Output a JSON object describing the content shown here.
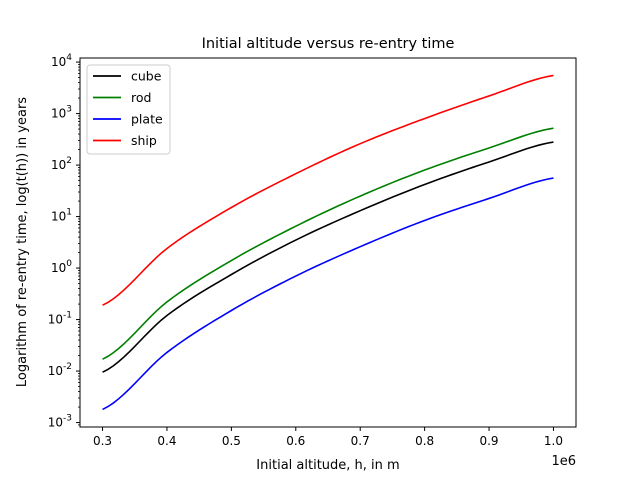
{
  "chart_data": {
    "type": "line",
    "title": "Initial altitude versus re-entry time",
    "xlabel": "Initial altitude, h, in m",
    "ylabel": "Logarithm of re-entry time, log(t(h)) in years",
    "x_offset_label": "1e6",
    "x_tick_labels": [
      "0.3",
      "0.4",
      "0.5",
      "0.6",
      "0.7",
      "0.8",
      "0.9",
      "1.0"
    ],
    "y_tick_labels": [
      "10-3",
      "10-2",
      "10-1",
      "100",
      "101",
      "102",
      "103",
      "104"
    ],
    "x_scale": "linear",
    "y_scale": "log",
    "xlim": [
      265000,
      1035000
    ],
    "ylim": [
      0.00082,
      12000
    ],
    "grid": false,
    "legend_position": "top-left",
    "x": [
      300000,
      400000,
      500000,
      600000,
      700000,
      800000,
      900000,
      1000000
    ],
    "series": [
      {
        "name": "cube",
        "color": "#000000",
        "values": [
          0.0095,
          0.12,
          0.75,
          3.5,
          13,
          42,
          115,
          280
        ]
      },
      {
        "name": "rod",
        "color": "#008000",
        "values": [
          0.017,
          0.22,
          1.4,
          6.5,
          25,
          80,
          215,
          520
        ]
      },
      {
        "name": "plate",
        "color": "#0000ff",
        "values": [
          0.0018,
          0.023,
          0.15,
          0.7,
          2.6,
          8.4,
          22.5,
          56
        ]
      },
      {
        "name": "ship",
        "color": "#ff0000",
        "values": [
          0.19,
          2.4,
          15,
          68,
          260,
          800,
          2200,
          5500
        ]
      }
    ]
  }
}
